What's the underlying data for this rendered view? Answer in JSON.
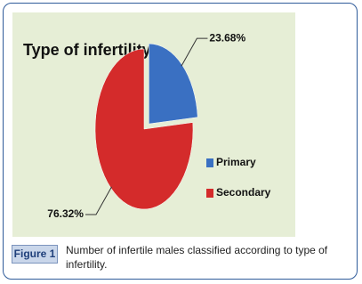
{
  "chart_data": {
    "type": "pie",
    "title": "Type of infertility",
    "categories": [
      "Primary",
      "Secondary"
    ],
    "values": [
      23.68,
      76.32
    ],
    "value_labels": [
      "23.68%",
      "76.32%"
    ],
    "colors": [
      "#3a70c2",
      "#d42b2b"
    ],
    "legend": "right"
  },
  "figure": {
    "label": "Figure 1",
    "caption": "Number of infertile males classified according to type of infertility."
  }
}
